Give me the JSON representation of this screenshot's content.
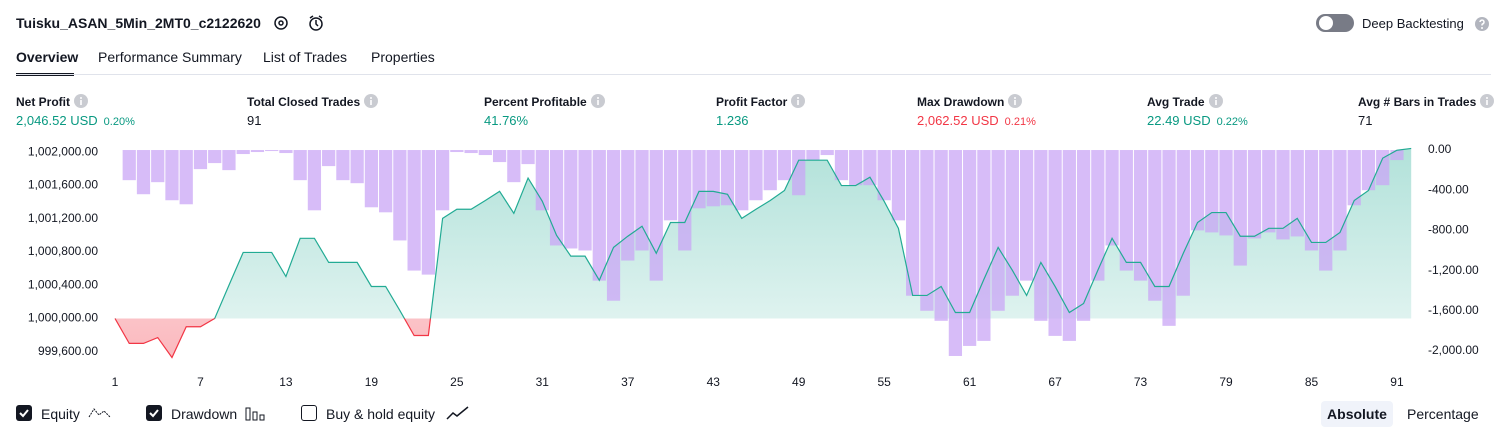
{
  "header": {
    "title": "Tuisku_ASAN_5Min_2MT0_c2122620",
    "toggle_label": "Deep Backtesting"
  },
  "tabs": [
    "Overview",
    "Performance Summary",
    "List of Trades",
    "Properties"
  ],
  "metrics": [
    {
      "label": "Net Profit",
      "value": "2,046.52 USD",
      "percent": "0.20%",
      "color": "#089981"
    },
    {
      "label": "Total Closed Trades",
      "value": "91",
      "color": "#131722"
    },
    {
      "label": "Percent Profitable",
      "value": "41.76%",
      "color": "#089981"
    },
    {
      "label": "Profit Factor",
      "value": "1.236",
      "color": "#089981"
    },
    {
      "label": "Max Drawdown",
      "value": "2,062.52 USD",
      "percent": "0.21%",
      "color": "#f23645"
    },
    {
      "label": "Avg Trade",
      "value": "22.49 USD",
      "percent": "0.22%",
      "color": "#089981"
    },
    {
      "label": "Avg # Bars in Trades",
      "value": "71",
      "color": "#131722"
    }
  ],
  "chart_data": {
    "type": "line",
    "x": [
      1,
      2,
      3,
      4,
      5,
      6,
      7,
      8,
      9,
      10,
      11,
      12,
      13,
      14,
      15,
      16,
      17,
      18,
      19,
      20,
      21,
      22,
      23,
      24,
      25,
      26,
      27,
      28,
      29,
      30,
      31,
      32,
      33,
      34,
      35,
      36,
      37,
      38,
      39,
      40,
      41,
      42,
      43,
      44,
      45,
      46,
      47,
      48,
      49,
      50,
      51,
      52,
      53,
      54,
      55,
      56,
      57,
      58,
      59,
      60,
      61,
      62,
      63,
      64,
      65,
      66,
      67,
      68,
      69,
      70,
      71,
      72,
      73,
      74,
      75,
      76,
      77,
      78,
      79,
      80,
      81,
      82,
      83,
      84,
      85,
      86,
      87,
      88,
      89,
      90,
      91,
      92
    ],
    "series": [
      {
        "name": "Equity",
        "color": "#22ab94",
        "negative_color": "#f23645",
        "values": [
          1000000,
          999700,
          999700,
          999770,
          999530,
          999900,
          999900,
          1000000,
          1000400,
          1000795,
          1000795,
          1000795,
          1000505,
          1000965,
          1000965,
          1000675,
          1000675,
          1000675,
          1000385,
          1000385,
          1000095,
          999795,
          999795,
          1001205,
          1001315,
          1001315,
          1001420,
          1001530,
          1001265,
          1001690,
          1001410,
          1001000,
          1000750,
          1000750,
          1000460,
          1000855,
          1000990,
          1001110,
          1000785,
          1001155,
          1001155,
          1001530,
          1001530,
          1001495,
          1001205,
          1001315,
          1001420,
          1001540,
          1001905,
          1001905,
          1001905,
          1001600,
          1001600,
          1001700,
          1001410,
          1001085,
          1000277,
          1000277,
          1000385,
          1000072,
          1000072,
          1000470,
          1000855,
          1000580,
          1000277,
          1000675,
          1000385,
          1000072,
          1000180,
          1000580,
          1000965,
          1000675,
          1000675,
          1000385,
          1000385,
          1000785,
          1001155,
          1001275,
          1001275,
          1000990,
          1000990,
          1001085,
          1001085,
          1001205,
          1000915,
          1000915,
          1001035,
          1001420,
          1001540,
          1001930,
          1002025,
          1002046.52
        ]
      },
      {
        "name": "Drawdown",
        "color": "#c9a6f5",
        "axis": "y2",
        "values": [
          0,
          -300,
          -440,
          -320,
          -500,
          -540,
          -190,
          -130,
          -200,
          -40,
          -20,
          -10,
          -30,
          -300,
          -600,
          -160,
          -300,
          -330,
          -570,
          -620,
          -900,
          -1200,
          -1240,
          -600,
          -20,
          -30,
          -50,
          -120,
          -320,
          -140,
          -600,
          -950,
          -980,
          -1000,
          -1300,
          -1500,
          -1100,
          -1000,
          -1300,
          -700,
          -1000,
          -580,
          -560,
          -550,
          -600,
          -500,
          -400,
          -300,
          -450,
          -100,
          -50,
          -300,
          -350,
          -350,
          -500,
          -700,
          -1450,
          -1600,
          -1700,
          -2050,
          -1950,
          -1900,
          -1600,
          -1450,
          -1300,
          -1700,
          -1850,
          -1900,
          -1700,
          -1300,
          -950,
          -1200,
          -1300,
          -1500,
          -1750,
          -1450,
          -800,
          -820,
          -850,
          -1150,
          -880,
          -820,
          -890,
          -860,
          -1000,
          -1200,
          -1000,
          -550,
          -400,
          -350,
          -100,
          0
        ]
      }
    ],
    "xlim": [
      1,
      92
    ],
    "xticks": [
      1,
      7,
      13,
      19,
      25,
      31,
      37,
      43,
      49,
      55,
      61,
      67,
      73,
      79,
      85,
      91
    ],
    "ylim": [
      999500,
      1002100
    ],
    "yticks": [
      {
        "value": 1002000,
        "label": "1,002,000.00"
      },
      {
        "value": 1001600,
        "label": "1,001,600.00"
      },
      {
        "value": 1001200,
        "label": "1,001,200.00"
      },
      {
        "value": 1000800,
        "label": "1,000,800.00"
      },
      {
        "value": 1000400,
        "label": "1,000,400.00"
      },
      {
        "value": 1000000,
        "label": "1,000,000.00"
      },
      {
        "value": 999600,
        "label": "999,600.00"
      }
    ],
    "y2lim": [
      -2090,
      60
    ],
    "y2ticks": [
      {
        "value": 0,
        "label": "0.00"
      },
      {
        "value": -400,
        "label": "-400.00"
      },
      {
        "value": -800,
        "label": "-800.00"
      },
      {
        "value": -1200,
        "label": "-1,200.00"
      },
      {
        "value": -1600,
        "label": "-1,600.00"
      },
      {
        "value": -2000,
        "label": "-2,000.00"
      }
    ]
  },
  "controls": {
    "buy_hold_label": "Buy & hold equity",
    "modes": [
      "Absolute",
      "Percentage"
    ]
  }
}
